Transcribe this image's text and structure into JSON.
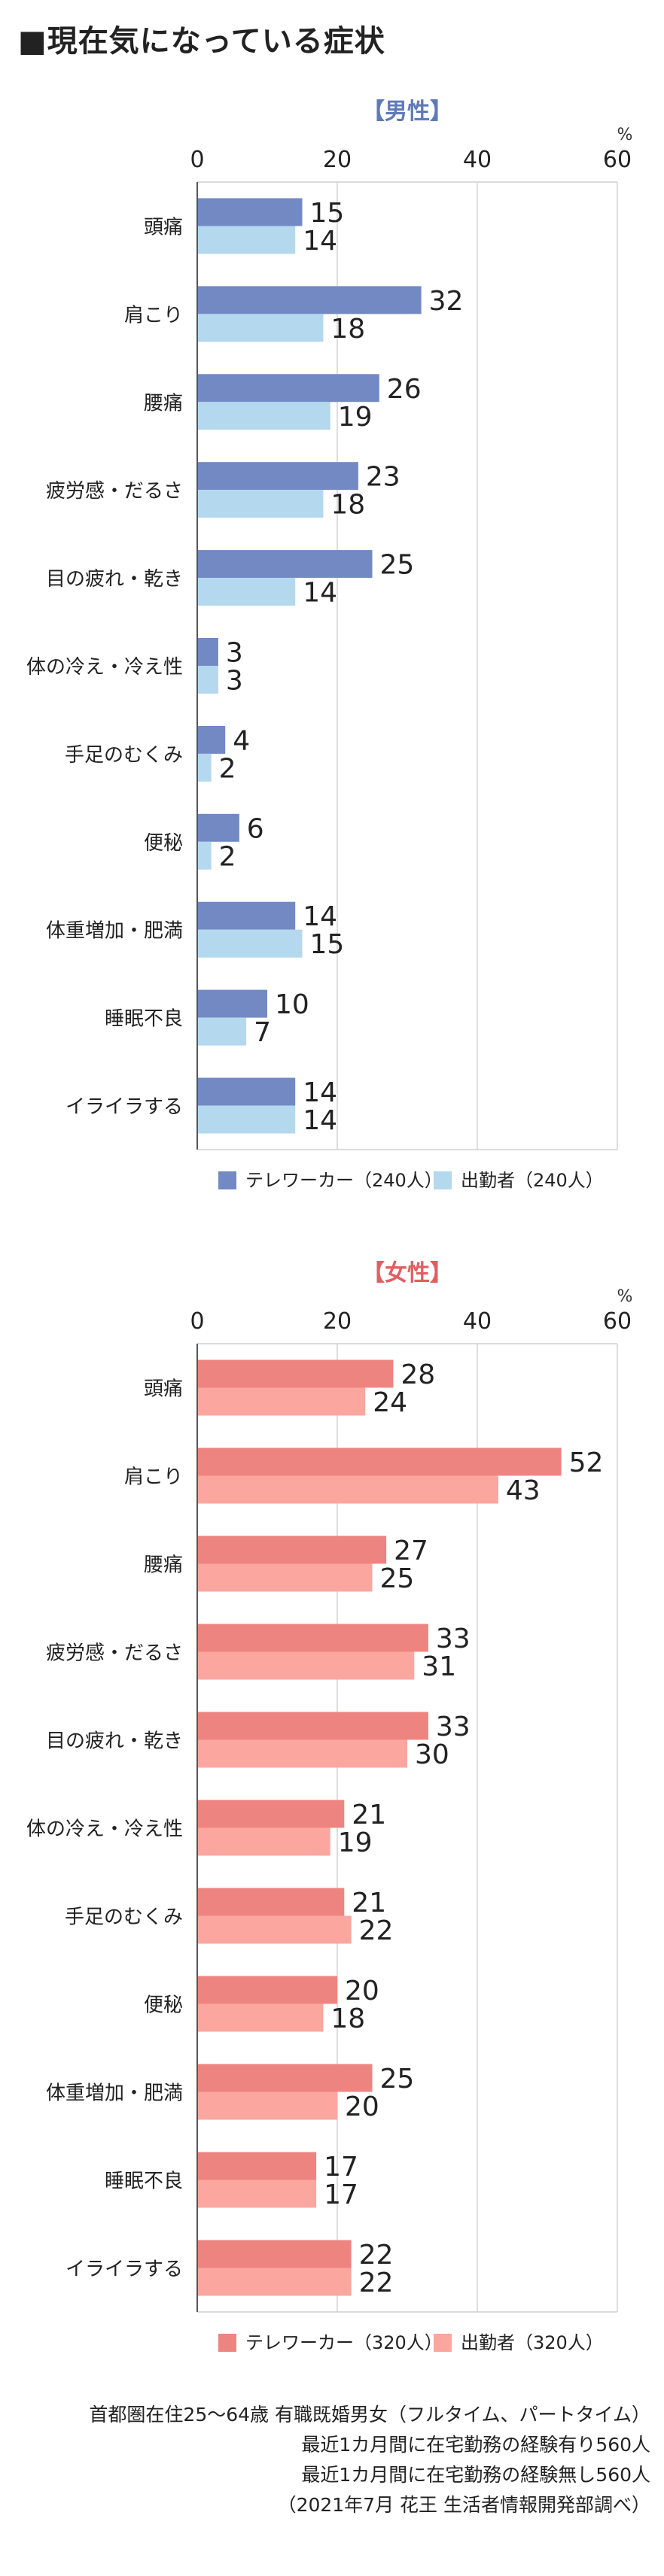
{
  "title": "■現在気になっている症状",
  "unit": "%",
  "chart_data": [
    {
      "type": "bar",
      "title": "【男性】",
      "title_color": "#5f7ab8",
      "xlim": [
        0,
        60
      ],
      "xticks": [
        0,
        20,
        40,
        60
      ],
      "categories": [
        "頭痛",
        "肩こり",
        "腰痛",
        "疲労感・だるさ",
        "目の疲れ・乾き",
        "体の冷え・冷え性",
        "手足のむくみ",
        "便秘",
        "体重増加・肥満",
        "睡眠不良",
        "イライラする"
      ],
      "series": [
        {
          "name": "テレワーカー（240人）",
          "color": "#7389c4",
          "values": [
            15,
            32,
            26,
            23,
            25,
            3,
            4,
            6,
            14,
            10,
            14
          ]
        },
        {
          "name": "出勤者（240人）",
          "color": "#b4d8ed",
          "values": [
            14,
            18,
            19,
            18,
            14,
            3,
            2,
            2,
            15,
            7,
            14
          ]
        }
      ],
      "legend": "bottom"
    },
    {
      "type": "bar",
      "title": "【女性】",
      "title_color": "#e06060",
      "xlim": [
        0,
        60
      ],
      "xticks": [
        0,
        20,
        40,
        60
      ],
      "categories": [
        "頭痛",
        "肩こり",
        "腰痛",
        "疲労感・だるさ",
        "目の疲れ・乾き",
        "体の冷え・冷え性",
        "手足のむくみ",
        "便秘",
        "体重増加・肥満",
        "睡眠不良",
        "イライラする"
      ],
      "series": [
        {
          "name": "テレワーカー（320人）",
          "color": "#ee8480",
          "values": [
            28,
            52,
            27,
            33,
            33,
            21,
            21,
            20,
            25,
            17,
            22
          ]
        },
        {
          "name": "出勤者（320人）",
          "color": "#fba69f",
          "values": [
            24,
            43,
            25,
            31,
            30,
            19,
            22,
            18,
            20,
            17,
            22
          ]
        }
      ],
      "legend": "bottom"
    }
  ],
  "source_lines": [
    "首都圏在住25〜64歳 有職既婚男女（フルタイム、パートタイム）",
    "最近1カ月間に在宅勤務の経験有り560人",
    "最近1カ月間に在宅勤務の経験無し560人",
    "（2021年7月 花王 生活者情報開発部調べ）"
  ]
}
